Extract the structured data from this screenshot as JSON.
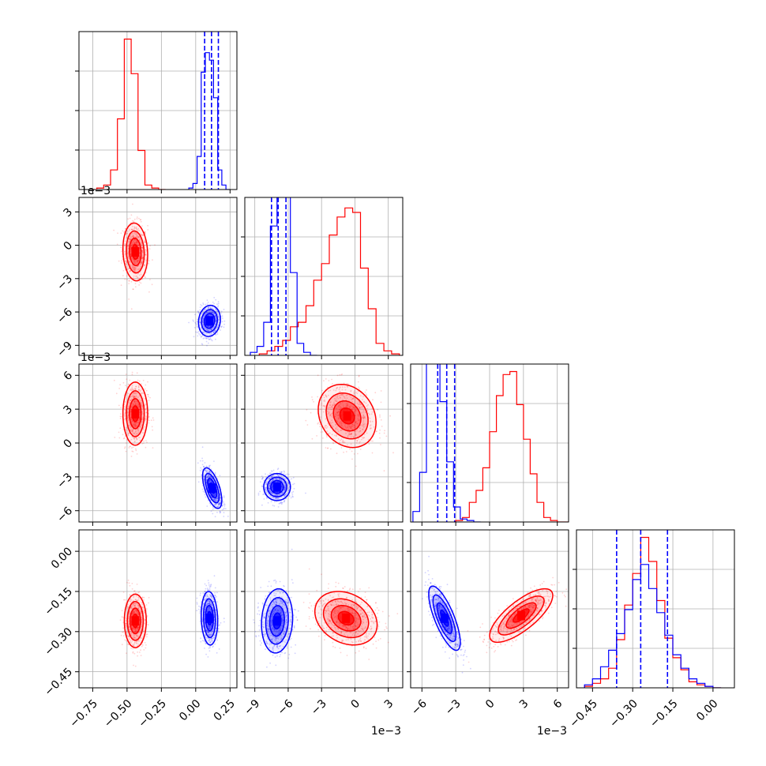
{
  "colors": {
    "red": "#ff0000",
    "blue": "#0000ff",
    "grid": "#b0b0b0",
    "axis": "#000000"
  },
  "chart_data": {
    "type": "corner",
    "title": "",
    "grid": true,
    "series": [
      {
        "name": "",
        "color": "#ff0000"
      },
      {
        "name": "",
        "color": "#0000ff"
      }
    ],
    "parameters": [
      {
        "range": [
          -0.85,
          0.3
        ],
        "ticks": [
          -0.75,
          -0.5,
          -0.25,
          0.0,
          0.25
        ],
        "tick_labels": [
          "−0.75",
          "−0.50",
          "−0.25",
          "0.00",
          "0.25"
        ],
        "offset_label": ""
      },
      {
        "range": [
          -9.9,
          4.3
        ],
        "ticks": [
          -9,
          -6,
          -3,
          0,
          3
        ],
        "tick_labels": [
          "−9",
          "−6",
          "−3",
          "0",
          "3"
        ],
        "offset_label": "1e−3"
      },
      {
        "range": [
          -7.0,
          7.0
        ],
        "ticks": [
          -6,
          -3,
          0,
          3,
          6
        ],
        "tick_labels": [
          "−6",
          "−3",
          "0",
          "3",
          "6"
        ],
        "offset_label": "1e−3"
      },
      {
        "range": [
          -0.51,
          0.08
        ],
        "ticks": [
          -0.45,
          -0.3,
          -0.15,
          0.0
        ],
        "tick_labels": [
          "−0.45",
          "−0.30",
          "−0.15",
          "0.00"
        ],
        "offset_label": ""
      }
    ],
    "diagonal": [
      {
        "param": 0,
        "ymax": 1.0,
        "red": {
          "edges": [
            -0.77,
            -0.72,
            -0.67,
            -0.62,
            -0.57,
            -0.52,
            -0.47,
            -0.42,
            -0.37,
            -0.32,
            -0.27,
            -0.22
          ],
          "counts": [
            0,
            0.01,
            0.03,
            0.13,
            0.47,
            1.0,
            0.77,
            0.26,
            0.03,
            0.01,
            0
          ]
        },
        "blue": {
          "edges": [
            -0.05,
            -0.02,
            0.01,
            0.04,
            0.07,
            0.1,
            0.13,
            0.16,
            0.19,
            0.22,
            0.25
          ],
          "counts": [
            0.01,
            0.04,
            0.22,
            0.78,
            0.91,
            0.86,
            0.61,
            0.13,
            0.03,
            0
          ]
        },
        "quantiles": [
          0.065,
          0.115,
          0.165
        ]
      },
      {
        "param": 1,
        "ymax": 1.0,
        "red": {
          "edges": [
            -8.6,
            -7.9,
            -7.2,
            -6.5,
            -5.8,
            -5.1,
            -4.4,
            -3.7,
            -3.0,
            -2.3,
            -1.6,
            -0.9,
            -0.2,
            0.5,
            1.2,
            1.9,
            2.6,
            3.3,
            4.0
          ],
          "counts": [
            0.01,
            0.03,
            0.06,
            0.1,
            0.19,
            0.22,
            0.33,
            0.5,
            0.61,
            0.8,
            0.92,
            0.98,
            0.95,
            0.58,
            0.31,
            0.08,
            0.03,
            0.01
          ]
        },
        "blue": {
          "edges": [
            -9.4,
            -8.8,
            -8.2,
            -7.6,
            -7.0,
            -6.4,
            -5.8,
            -5.2,
            -4.6,
            -4.0,
            -3.4
          ],
          "counts": [
            0.02,
            0.06,
            0.22,
            0.86,
            1.38,
            1.28,
            0.55,
            0.08,
            0.02,
            0
          ]
        },
        "quantiles": [
          -7.5,
          -6.9,
          -6.2
        ]
      },
      {
        "param": 2,
        "ymax": 1.0,
        "red": {
          "edges": [
            -3.0,
            -2.4,
            -1.8,
            -1.2,
            -0.6,
            0.0,
            0.6,
            1.2,
            1.8,
            2.4,
            3.0,
            3.6,
            4.2,
            4.8,
            5.4,
            6.0,
            6.6,
            7.0
          ],
          "counts": [
            0.01,
            0.03,
            0.13,
            0.21,
            0.36,
            0.6,
            0.84,
            0.98,
            1.0,
            0.78,
            0.55,
            0.32,
            0.13,
            0.03,
            0.01,
            0,
            0
          ]
        },
        "blue": {
          "edges": [
            -6.8,
            -6.2,
            -5.6,
            -5.0,
            -4.4,
            -3.8,
            -3.2,
            -2.6,
            -2.0,
            -1.4,
            -0.8
          ],
          "counts": [
            0.07,
            0.33,
            1.42,
            1.3,
            0.8,
            0.4,
            0.1,
            0.02,
            0.01,
            0
          ]
        },
        "quantiles": [
          -4.6,
          -3.8,
          -3.1
        ]
      },
      {
        "param": 3,
        "ymax": 1.0,
        "red": {
          "edges": [
            -0.48,
            -0.45,
            -0.42,
            -0.39,
            -0.36,
            -0.33,
            -0.3,
            -0.27,
            -0.24,
            -0.21,
            -0.18,
            -0.15,
            -0.12,
            -0.09,
            -0.06,
            -0.03,
            0.0,
            0.03
          ],
          "counts": [
            0.01,
            0.03,
            0.06,
            0.13,
            0.32,
            0.55,
            0.76,
            1.0,
            0.84,
            0.58,
            0.33,
            0.2,
            0.12,
            0.04,
            0.02,
            0.01,
            0
          ]
        },
        "blue": {
          "edges": [
            -0.48,
            -0.45,
            -0.42,
            -0.39,
            -0.36,
            -0.33,
            -0.3,
            -0.27,
            -0.24,
            -0.21,
            -0.18,
            -0.15,
            -0.12,
            -0.09,
            -0.06,
            -0.03,
            0.0,
            0.03
          ],
          "counts": [
            0.02,
            0.06,
            0.14,
            0.25,
            0.36,
            0.52,
            0.72,
            0.82,
            0.66,
            0.5,
            0.35,
            0.22,
            0.13,
            0.06,
            0.03,
            0.01,
            0
          ]
        },
        "quantiles": [
          -0.36,
          -0.27,
          -0.17
        ]
      }
    ],
    "pairs": [
      {
        "row": 1,
        "col": 0,
        "red": {
          "center": [
            -0.44,
            -0.6
          ],
          "sd": [
            0.045,
            1.3
          ],
          "rho": -0.1
        },
        "blue": {
          "center": [
            0.1,
            -6.8
          ],
          "sd": [
            0.04,
            0.7
          ],
          "rho": 0.1
        }
      },
      {
        "row": 2,
        "col": 0,
        "red": {
          "center": [
            -0.44,
            2.6
          ],
          "sd": [
            0.045,
            1.4
          ],
          "rho": 0.0
        },
        "blue": {
          "center": [
            0.12,
            -4.0
          ],
          "sd": [
            0.035,
            0.9
          ],
          "rho": -0.6
        }
      },
      {
        "row": 2,
        "col": 1,
        "red": {
          "center": [
            -0.7,
            2.4
          ],
          "sd": [
            1.3,
            1.4
          ],
          "rho": -0.2
        },
        "blue": {
          "center": [
            -7.0,
            -3.9
          ],
          "sd": [
            0.6,
            0.6
          ],
          "rho": 0.0
        }
      },
      {
        "row": 3,
        "col": 0,
        "red": {
          "center": [
            -0.44,
            -0.26
          ],
          "sd": [
            0.04,
            0.05
          ],
          "rho": 0.0
        },
        "blue": {
          "center": [
            0.1,
            -0.25
          ],
          "sd": [
            0.03,
            0.05
          ],
          "rho": -0.1
        }
      },
      {
        "row": 3,
        "col": 1,
        "red": {
          "center": [
            -0.8,
            -0.25
          ],
          "sd": [
            1.4,
            0.05
          ],
          "rho": -0.25
        },
        "blue": {
          "center": [
            -7.0,
            -0.26
          ],
          "sd": [
            0.7,
            0.06
          ],
          "rho": 0.1
        }
      },
      {
        "row": 3,
        "col": 2,
        "red": {
          "center": [
            2.8,
            -0.24
          ],
          "sd": [
            1.4,
            0.05
          ],
          "rho": 0.75
        },
        "blue": {
          "center": [
            -4.0,
            -0.25
          ],
          "sd": [
            0.7,
            0.06
          ],
          "rho": -0.75
        }
      }
    ]
  }
}
